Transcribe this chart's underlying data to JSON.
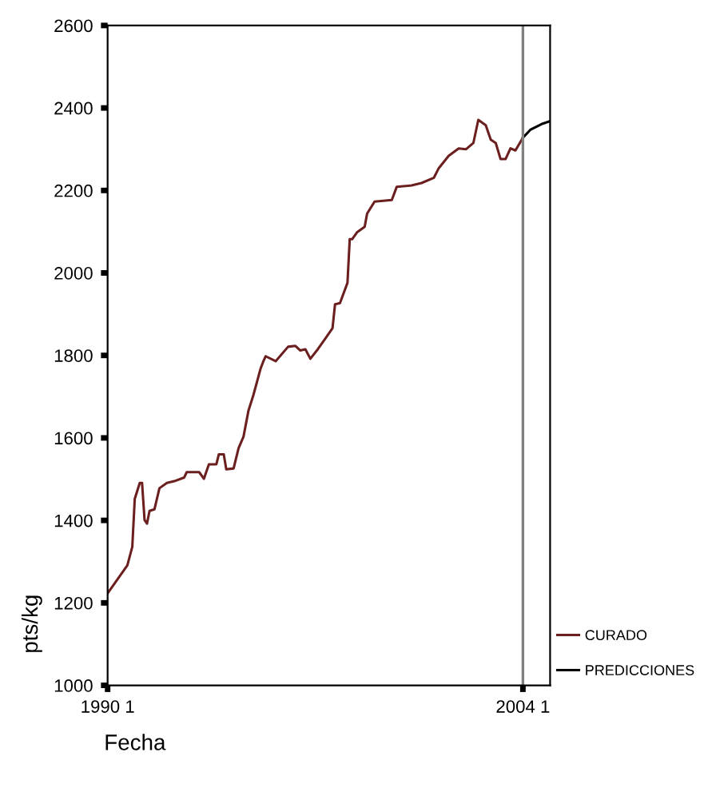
{
  "chart_data": {
    "type": "line",
    "xlabel": "Fecha",
    "ylabel": "pts/kg",
    "xlim": [
      "1990-01",
      "2004-12"
    ],
    "xticks": [
      {
        "value": "1990-01",
        "label": "1990 1"
      },
      {
        "value": "2004-01",
        "label": "2004 1"
      }
    ],
    "ylim": [
      1000,
      2600
    ],
    "yticks": [
      1000,
      1200,
      1400,
      1600,
      1800,
      2000,
      2200,
      2400,
      2600
    ],
    "grid": false,
    "legend": "right",
    "line_style": "solid",
    "marker": "none",
    "ref_lines": [
      {
        "axis": "x",
        "value": "2004-01",
        "color": "#808080"
      }
    ],
    "series": [
      {
        "name": "CURADO",
        "color": "#6b1f1f",
        "x": [
          "1990-01",
          "1990-09",
          "1990-11",
          "1990-12",
          "1991-02",
          "1991-03",
          "1991-04",
          "1991-05",
          "1991-06",
          "1991-08",
          "1991-10",
          "1992-01",
          "1992-04",
          "1992-08",
          "1992-09",
          "1993-02",
          "1993-04",
          "1993-06",
          "1993-09",
          "1993-10",
          "1993-12",
          "1994-01",
          "1994-04",
          "1994-06",
          "1994-08",
          "1994-10",
          "1994-12",
          "1995-03",
          "1995-04",
          "1995-05",
          "1995-09",
          "1996-02",
          "1996-05",
          "1996-07",
          "1996-09",
          "1996-11",
          "1997-02",
          "1997-05",
          "1997-08",
          "1997-09",
          "1997-11",
          "1998-02",
          "1998-03",
          "1998-04",
          "1998-06",
          "1998-09",
          "1998-10",
          "1999-01",
          "1999-08",
          "1999-10",
          "2000-04",
          "2000-08",
          "2001-01",
          "2001-03",
          "2001-07",
          "2001-11",
          "2002-02",
          "2002-05",
          "2002-07",
          "2002-10",
          "2002-12",
          "2003-02",
          "2003-04",
          "2003-06",
          "2003-08",
          "2003-10",
          "2004-01"
        ],
        "values": [
          1223,
          1291,
          1336,
          1452,
          1491,
          1491,
          1401,
          1392,
          1423,
          1427,
          1478,
          1491,
          1495,
          1504,
          1517,
          1517,
          1501,
          1536,
          1536,
          1560,
          1560,
          1524,
          1526,
          1575,
          1603,
          1666,
          1704,
          1769,
          1785,
          1798,
          1786,
          1821,
          1823,
          1812,
          1815,
          1792,
          1815,
          1840,
          1866,
          1924,
          1927,
          1976,
          2082,
          2082,
          2099,
          2112,
          2144,
          2173,
          2177,
          2209,
          2212,
          2218,
          2231,
          2254,
          2284,
          2302,
          2300,
          2315,
          2371,
          2358,
          2323,
          2315,
          2276,
          2276,
          2302,
          2297,
          2328
        ]
      },
      {
        "name": "PREDICCIONES",
        "color": "#000000",
        "x": [
          "2004-01",
          "2004-04",
          "2004-09",
          "2004-12"
        ],
        "values": [
          2328,
          2347,
          2362,
          2368
        ]
      }
    ]
  }
}
